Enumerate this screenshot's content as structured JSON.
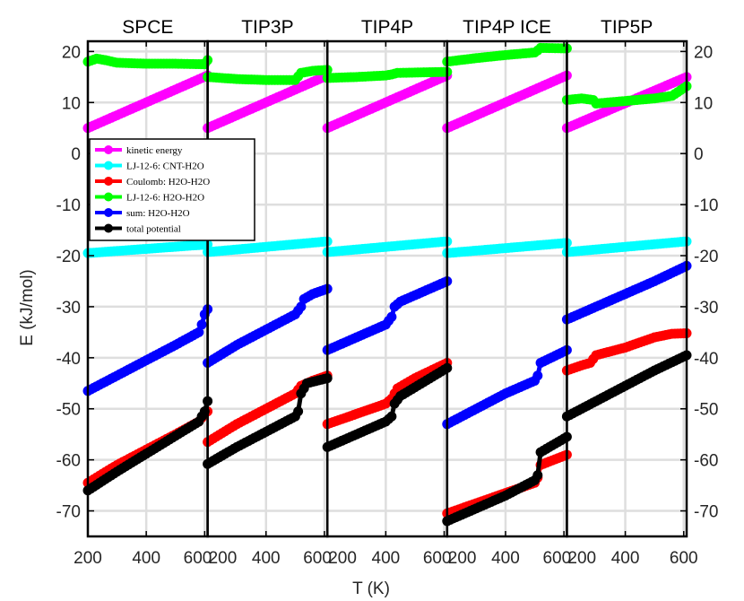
{
  "chart_data": {
    "type": "scatter",
    "xlabel": "T (K)",
    "ylabel": "E (kJ/mol)",
    "ylim": [
      -75,
      22
    ],
    "xlim": [
      200,
      610
    ],
    "x_ticks": [
      "200",
      "400",
      "600"
    ],
    "y_ticks": [
      "-70",
      "-60",
      "-50",
      "-40",
      "-30",
      "-20",
      "-10",
      "0",
      "10",
      "20"
    ],
    "grid": true,
    "legend_location": "upper-left of first panel",
    "series_styles": [
      {
        "name": "kinetic energy",
        "color": "#ff00ff"
      },
      {
        "name": "LJ-12-6:  CNT-H2O",
        "color": "#00ffff"
      },
      {
        "name": "Coulomb:  H2O-H2O",
        "color": "#ff0000"
      },
      {
        "name": "LJ-12-6:  H2O-H2O",
        "color": "#00ff00"
      },
      {
        "name": "sum:  H2O-H2O",
        "color": "#0000ff"
      },
      {
        "name": "total potential",
        "color": "#000000"
      }
    ],
    "panels": [
      {
        "title": "SPCE",
        "series": {
          "kinetic energy": [
            [
              200,
              5.0
            ],
            [
              610,
              15.3
            ]
          ],
          "LJ-12-6:  CNT-H2O": [
            [
              200,
              -19.5
            ],
            [
              610,
              -17.8
            ]
          ],
          "Coulomb:  H2O-H2O": [
            [
              200,
              -64.5
            ],
            [
              300,
              -61.0
            ],
            [
              400,
              -58.0
            ],
            [
              500,
              -55.0
            ],
            [
              580,
              -52.5
            ],
            [
              600,
              -51.0
            ],
            [
              610,
              -50.5
            ]
          ],
          "LJ-12-6:  H2O-H2O": [
            [
              200,
              18.0
            ],
            [
              230,
              18.6
            ],
            [
              260,
              18.3
            ],
            [
              300,
              17.8
            ],
            [
              400,
              17.6
            ],
            [
              500,
              17.6
            ],
            [
              600,
              17.5
            ],
            [
              610,
              18.3
            ]
          ],
          "sum:  H2O-H2O": [
            [
              200,
              -46.5
            ],
            [
              300,
              -43.5
            ],
            [
              400,
              -40.5
            ],
            [
              500,
              -37.5
            ],
            [
              580,
              -35.0
            ],
            [
              590,
              -33.5
            ],
            [
              600,
              -31.5
            ],
            [
              610,
              -30.5
            ]
          ],
          "total potential": [
            [
              200,
              -66.0
            ],
            [
              300,
              -62.3
            ],
            [
              400,
              -58.8
            ],
            [
              500,
              -55.3
            ],
            [
              580,
              -52.5
            ],
            [
              600,
              -50.5
            ],
            [
              610,
              -48.5
            ]
          ]
        }
      },
      {
        "title": "TIP3P",
        "series": {
          "kinetic energy": [
            [
              200,
              5.0
            ],
            [
              610,
              15.3
            ]
          ],
          "LJ-12-6:  CNT-H2O": [
            [
              200,
              -19.3
            ],
            [
              610,
              -17.2
            ]
          ],
          "Coulomb:  H2O-H2O": [
            [
              200,
              -56.5
            ],
            [
              300,
              -53.0
            ],
            [
              400,
              -50.0
            ],
            [
              500,
              -47.0
            ],
            [
              520,
              -45.5
            ],
            [
              560,
              -44.5
            ],
            [
              610,
              -43.5
            ]
          ],
          "LJ-12-6:  H2O-H2O": [
            [
              200,
              15.0
            ],
            [
              300,
              14.6
            ],
            [
              400,
              14.4
            ],
            [
              500,
              14.4
            ],
            [
              520,
              15.8
            ],
            [
              560,
              16.2
            ],
            [
              610,
              16.4
            ]
          ],
          "sum:  H2O-H2O": [
            [
              200,
              -41.0
            ],
            [
              300,
              -37.5
            ],
            [
              400,
              -34.5
            ],
            [
              500,
              -31.5
            ],
            [
              520,
              -30.0
            ],
            [
              530,
              -28.5
            ],
            [
              560,
              -27.5
            ],
            [
              610,
              -26.5
            ]
          ],
          "total potential": [
            [
              200,
              -60.8
            ],
            [
              300,
              -57.5
            ],
            [
              400,
              -54.5
            ],
            [
              500,
              -51.5
            ],
            [
              510,
              -50.5
            ],
            [
              520,
              -47.0
            ],
            [
              540,
              -45.0
            ],
            [
              610,
              -44.0
            ]
          ]
        }
      },
      {
        "title": "TIP4P",
        "series": {
          "kinetic energy": [
            [
              200,
              5.0
            ],
            [
              610,
              15.3
            ]
          ],
          "LJ-12-6:  CNT-H2O": [
            [
              200,
              -19.3
            ],
            [
              610,
              -17.2
            ]
          ],
          "Coulomb:  H2O-H2O": [
            [
              200,
              -53.0
            ],
            [
              300,
              -51.0
            ],
            [
              400,
              -49.0
            ],
            [
              420,
              -48.0
            ],
            [
              440,
              -46.0
            ],
            [
              500,
              -44.0
            ],
            [
              610,
              -41.0
            ]
          ],
          "LJ-12-6:  H2O-H2O": [
            [
              200,
              14.8
            ],
            [
              300,
              15.0
            ],
            [
              400,
              15.3
            ],
            [
              420,
              15.5
            ],
            [
              440,
              15.8
            ],
            [
              610,
              16.0
            ]
          ],
          "sum:  H2O-H2O": [
            [
              200,
              -38.5
            ],
            [
              300,
              -36.0
            ],
            [
              400,
              -33.5
            ],
            [
              420,
              -32.0
            ],
            [
              430,
              -30.0
            ],
            [
              450,
              -29.0
            ],
            [
              610,
              -25.0
            ]
          ],
          "total potential": [
            [
              200,
              -57.5
            ],
            [
              300,
              -55.0
            ],
            [
              400,
              -52.5
            ],
            [
              420,
              -51.5
            ],
            [
              430,
              -49.0
            ],
            [
              450,
              -47.5
            ],
            [
              610,
              -42.0
            ]
          ]
        }
      },
      {
        "title": "TIP4P ICE",
        "series": {
          "kinetic energy": [
            [
              200,
              5.0
            ],
            [
              610,
              15.3
            ]
          ],
          "LJ-12-6:  CNT-H2O": [
            [
              200,
              -19.5
            ],
            [
              610,
              -17.5
            ]
          ],
          "Coulomb:  H2O-H2O": [
            [
              200,
              -70.5
            ],
            [
              300,
              -68.5
            ],
            [
              400,
              -66.5
            ],
            [
              500,
              -64.5
            ],
            [
              510,
              -63.5
            ],
            [
              520,
              -61.0
            ],
            [
              610,
              -59.0
            ]
          ],
          "LJ-12-6:  H2O-H2O": [
            [
              200,
              18.0
            ],
            [
              300,
              18.7
            ],
            [
              400,
              19.3
            ],
            [
              500,
              19.8
            ],
            [
              510,
              20.2
            ],
            [
              520,
              20.7
            ],
            [
              610,
              20.6
            ]
          ],
          "sum:  H2O-H2O": [
            [
              200,
              -53.0
            ],
            [
              300,
              -50.0
            ],
            [
              400,
              -47.0
            ],
            [
              500,
              -44.5
            ],
            [
              510,
              -43.5
            ],
            [
              520,
              -41.0
            ],
            [
              610,
              -38.5
            ]
          ],
          "total potential": [
            [
              200,
              -72.0
            ],
            [
              300,
              -69.5
            ],
            [
              400,
              -67.0
            ],
            [
              500,
              -64.0
            ],
            [
              510,
              -63.0
            ],
            [
              520,
              -58.5
            ],
            [
              610,
              -55.5
            ]
          ]
        }
      },
      {
        "title": "TIP5P",
        "series": {
          "kinetic energy": [
            [
              200,
              5.0
            ],
            [
              610,
              15.0
            ]
          ],
          "LJ-12-6:  CNT-H2O": [
            [
              200,
              -19.3
            ],
            [
              610,
              -17.2
            ]
          ],
          "Coulomb:  H2O-H2O": [
            [
              200,
              -42.5
            ],
            [
              250,
              -41.5
            ],
            [
              280,
              -41.0
            ],
            [
              300,
              -39.5
            ],
            [
              400,
              -38.0
            ],
            [
              500,
              -36.0
            ],
            [
              560,
              -35.3
            ],
            [
              610,
              -35.2
            ]
          ],
          "LJ-12-6:  H2O-H2O": [
            [
              200,
              10.5
            ],
            [
              250,
              10.8
            ],
            [
              290,
              10.5
            ],
            [
              300,
              9.8
            ],
            [
              400,
              10.3
            ],
            [
              500,
              10.8
            ],
            [
              560,
              11.3
            ],
            [
              610,
              13.2
            ]
          ],
          "sum:  H2O-H2O": [
            [
              200,
              -32.5
            ],
            [
              300,
              -30.0
            ],
            [
              400,
              -27.5
            ],
            [
              500,
              -25.0
            ],
            [
              610,
              -22.0
            ]
          ],
          "total potential": [
            [
              200,
              -51.5
            ],
            [
              300,
              -48.5
            ],
            [
              400,
              -45.5
            ],
            [
              500,
              -42.5
            ],
            [
              610,
              -39.5
            ]
          ]
        }
      }
    ]
  }
}
